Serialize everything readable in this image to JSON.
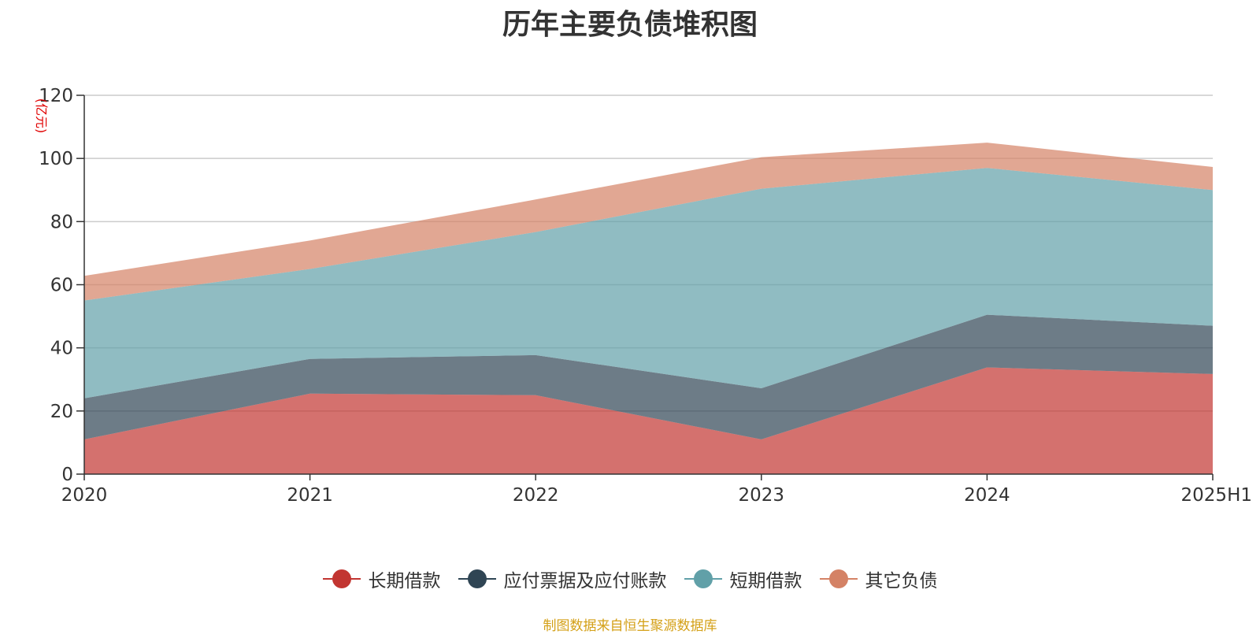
{
  "chart_data": {
    "type": "area",
    "stacked": true,
    "title": "历年主要负债堆积图",
    "ylabel": "(亿元)",
    "xlabel": "",
    "categories": [
      "2020",
      "2021",
      "2022",
      "2023",
      "2024",
      "2025H1"
    ],
    "ylim": [
      0,
      120
    ],
    "yticks": [
      0,
      20,
      40,
      60,
      80,
      100,
      120
    ],
    "grid": true,
    "legend_position": "bottom",
    "series": [
      {
        "name": "长期借款",
        "values": [
          11.0,
          25.5,
          25.0,
          11.0,
          33.8,
          31.7
        ],
        "color": "#c23531"
      },
      {
        "name": "应付票据及应付账款",
        "values": [
          13.0,
          11.0,
          12.7,
          16.2,
          16.7,
          15.3
        ],
        "color": "#2f4554"
      },
      {
        "name": "短期借款",
        "values": [
          31.0,
          28.5,
          39.0,
          63.2,
          46.5,
          43.0
        ],
        "color": "#61a0a8"
      },
      {
        "name": "其它负债",
        "values": [
          7.8,
          9.0,
          10.3,
          10.0,
          8.0,
          7.3
        ],
        "color": "#d48265"
      }
    ]
  },
  "source_note": "制图数据来自恒生聚源数据库"
}
